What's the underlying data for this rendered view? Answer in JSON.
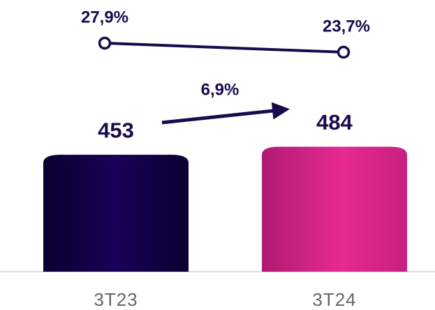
{
  "chart_data": {
    "type": "bar",
    "categories": [
      "3T23",
      "3T24"
    ],
    "values": [
      453,
      484
    ],
    "colors": [
      "#130048",
      "#e2288f"
    ],
    "line": {
      "type": "line",
      "values": [
        27.9,
        23.7
      ],
      "value_labels": [
        "27,9%",
        "23,7%"
      ],
      "color": "#1a0a4d"
    },
    "annotation": "6,9%"
  }
}
